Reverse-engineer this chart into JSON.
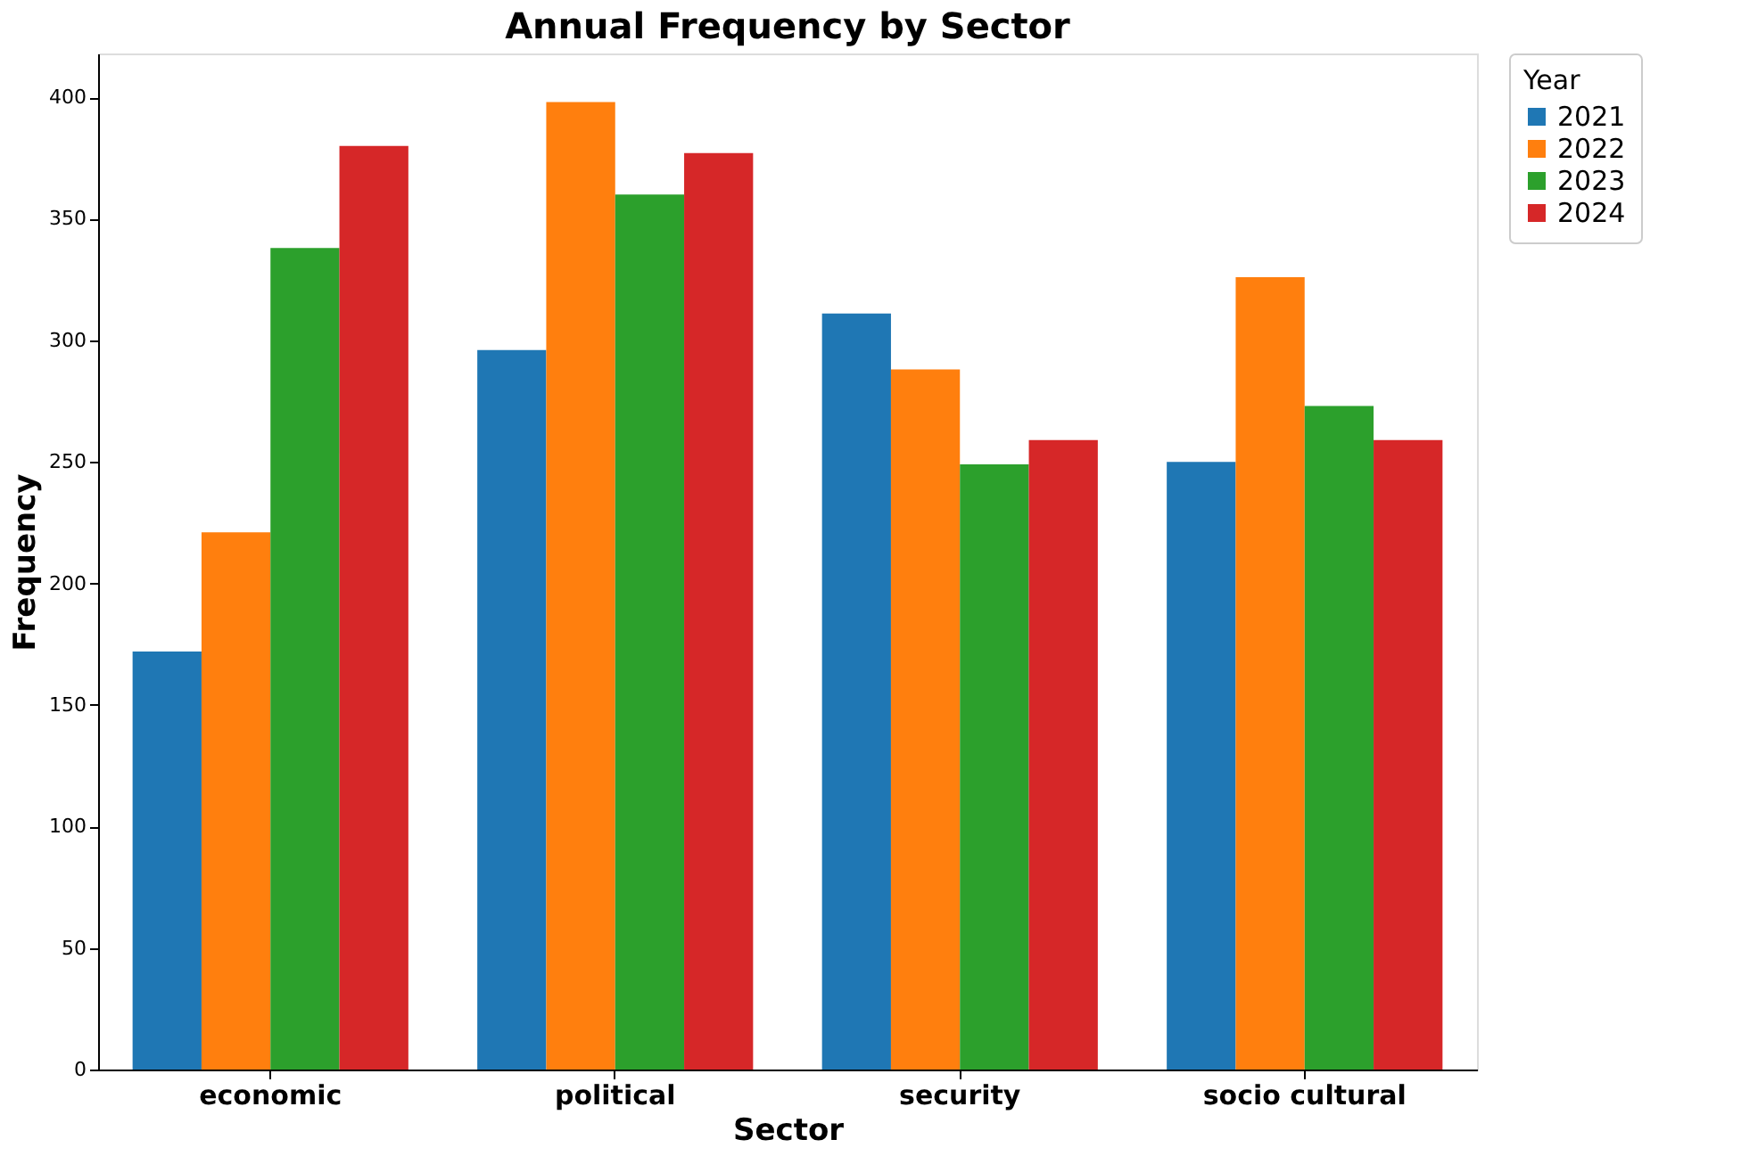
{
  "chart_data": {
    "type": "bar",
    "title": "Annual Frequency by Sector",
    "xlabel": "Sector",
    "ylabel": "Frequency",
    "legend_title": "Year",
    "categories": [
      "economic",
      "political",
      "security",
      "socio cultural"
    ],
    "series": [
      {
        "name": "2021",
        "color": "#1f77b4",
        "values": [
          172,
          296,
          311,
          250
        ]
      },
      {
        "name": "2022",
        "color": "#ff7f0e",
        "values": [
          221,
          398,
          288,
          326
        ]
      },
      {
        "name": "2023",
        "color": "#2ca02c",
        "values": [
          338,
          360,
          249,
          273
        ]
      },
      {
        "name": "2024",
        "color": "#d62728",
        "values": [
          380,
          377,
          259,
          259
        ]
      }
    ],
    "ylim": [
      0,
      418
    ],
    "yticks": [
      0,
      50,
      100,
      150,
      200,
      250,
      300,
      350,
      400
    ],
    "grid": false,
    "legend": "top right"
  }
}
